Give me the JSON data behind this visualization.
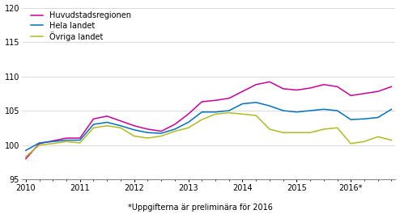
{
  "footnote": "*Uppgifterna är preliminära för 2016",
  "legend_labels": [
    "Huvudstadsregionen",
    "Hela landet",
    "Övriga landet"
  ],
  "colors": [
    "#cc0099",
    "#0070c0",
    "#b2bb1e"
  ],
  "ylim": [
    95,
    120
  ],
  "yticks": [
    95,
    100,
    105,
    110,
    115,
    120
  ],
  "xtick_positions": [
    0,
    4,
    8,
    12,
    16,
    20,
    24
  ],
  "xtick_labels": [
    "2010",
    "2011",
    "2012",
    "2013",
    "2014",
    "2015",
    "2016*"
  ],
  "huvudstadsregionen": [
    98.0,
    100.2,
    100.6,
    101.0,
    101.0,
    103.8,
    104.2,
    103.5,
    102.8,
    102.3,
    102.0,
    103.0,
    104.5,
    106.3,
    106.5,
    106.8,
    107.8,
    108.8,
    109.2,
    108.2,
    108.0,
    108.3,
    108.8,
    108.5,
    107.2,
    107.5,
    107.8,
    108.5
  ],
  "hela_landet": [
    99.2,
    100.3,
    100.5,
    100.7,
    100.7,
    103.0,
    103.3,
    102.8,
    102.2,
    101.8,
    101.7,
    102.3,
    103.3,
    104.8,
    104.8,
    105.0,
    106.0,
    106.2,
    105.7,
    105.0,
    104.8,
    105.0,
    105.2,
    105.0,
    103.7,
    103.8,
    104.0,
    105.2
  ],
  "ovriga_landet": [
    98.3,
    100.0,
    100.2,
    100.5,
    100.3,
    102.5,
    102.8,
    102.5,
    101.3,
    101.0,
    101.3,
    102.0,
    102.5,
    103.7,
    104.5,
    104.7,
    104.5,
    104.3,
    102.3,
    101.8,
    101.8,
    101.8,
    102.3,
    102.5,
    100.2,
    100.5,
    101.2,
    100.7
  ],
  "xlim": [
    -0.3,
    27.3
  ],
  "n_points": 28
}
